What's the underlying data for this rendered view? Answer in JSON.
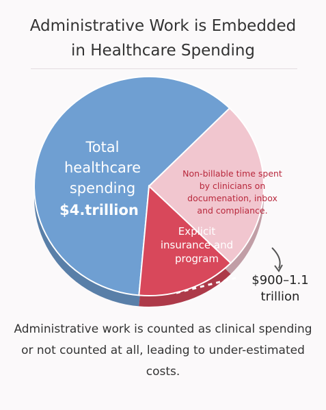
{
  "chart_data": {
    "type": "pie",
    "title": "Administrative Work is Embedded in Healthcare Spending",
    "categories": [
      "Total healthcare spending",
      "Non-billable time spent by clinicians on documenation, inbox and compliance.",
      "Explicit insurance and program"
    ],
    "values": [
      61,
      25,
      14
    ],
    "colors": [
      "#6f9fd2",
      "#f1c6cf",
      "#d8485b"
    ],
    "annotations": [
      "$4.trillion",
      "$900–1.1 trillion"
    ],
    "caption": "Administrative work is counted as clinical spending or not counted at all, leading to under-estimated costs."
  }
}
